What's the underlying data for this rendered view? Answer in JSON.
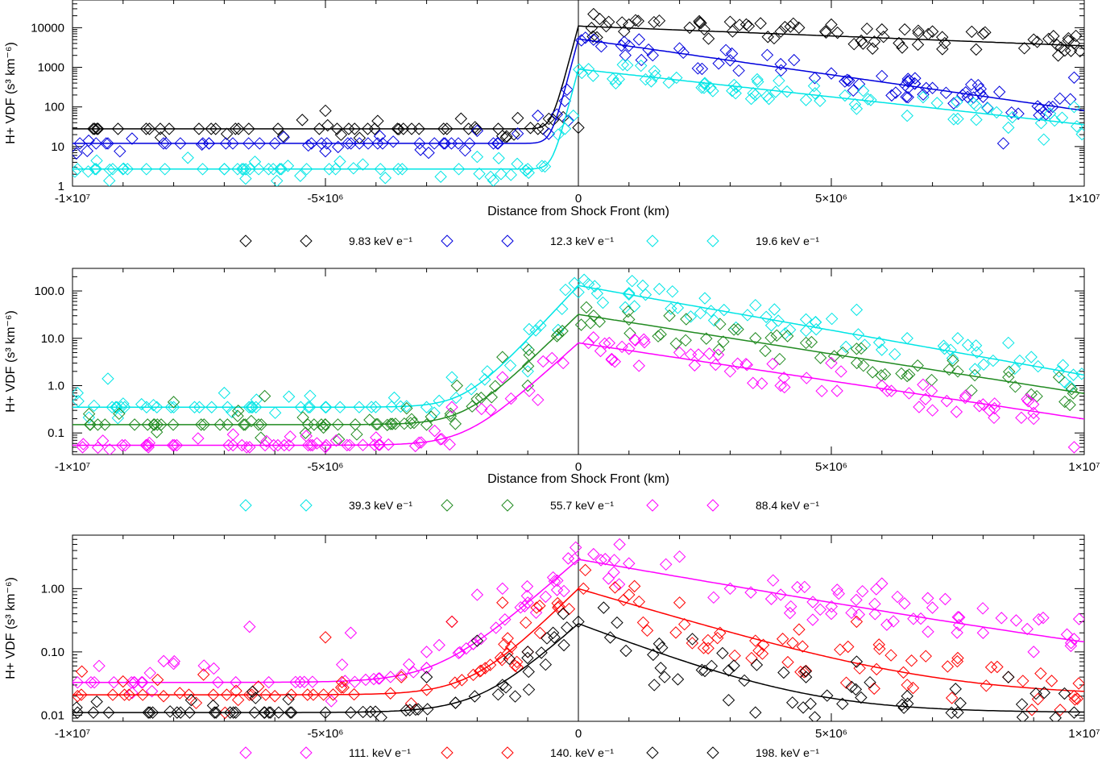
{
  "chart_data": [
    {
      "type": "scatter",
      "scale": "log",
      "xlabel": "Distance from Shock Front (km)",
      "ylabel": "H+ VDF (s³ km⁻⁶)",
      "xlim": [
        -10000000,
        10000000
      ],
      "ylim": [
        1,
        50000
      ],
      "x_ticks": [
        {
          "value": -10000000,
          "label": "-1×10⁷"
        },
        {
          "value": -5000000,
          "label": "-5×10⁶"
        },
        {
          "value": 0,
          "label": "0"
        },
        {
          "value": 5000000,
          "label": "5×10⁶"
        },
        {
          "value": 10000000,
          "label": "1×10⁷"
        }
      ],
      "y_ticks": [
        {
          "value": 1,
          "label": "1"
        },
        {
          "value": 10,
          "label": "10"
        },
        {
          "value": 100,
          "label": "100"
        },
        {
          "value": 1000,
          "label": "1000"
        },
        {
          "value": 10000,
          "label": "10000"
        }
      ],
      "series": [
        {
          "name": "9.83 keV e⁻¹",
          "color": "#000000",
          "upstream": 28,
          "peak": 11000,
          "decay_scale": 8700000,
          "floor": 0,
          "rise": 90000,
          "scatter": 0.28,
          "points": [
            [
              -9100000.0,
              28
            ],
            [
              -7500000.0,
              28
            ],
            [
              -5000000.0,
              80
            ],
            [
              -800000.0,
              28
            ],
            [
              -700000.0,
              28
            ],
            [
              -300000.0,
              55
            ],
            [
              0.0,
              30
            ],
            [
              300000.0,
              22000
            ],
            [
              600000.0,
              14000
            ],
            [
              1000000.0,
              12000
            ],
            [
              1600000.0,
              15000
            ],
            [
              2200000.0,
              10000
            ],
            [
              3000000.0,
              14000
            ],
            [
              4000000.0,
              8000
            ],
            [
              5000000.0,
              12000
            ],
            [
              6000000.0,
              9000
            ],
            [
              7000000.0,
              8000
            ],
            [
              8000000.0,
              7000
            ],
            [
              9000000.0,
              5000
            ],
            [
              9800000.0,
              4000
            ]
          ]
        },
        {
          "name": "12.3 keV e⁻¹",
          "color": "#0000dd",
          "upstream": 12,
          "peak": 5200,
          "decay_scale": 2400000,
          "floor": 0,
          "rise": 90000,
          "scatter": 0.32,
          "points": [
            [
              -9300000.0,
              12
            ],
            [
              -8200000.0,
              12
            ],
            [
              -7300000.0,
              12
            ],
            [
              -6000000.0,
              12
            ],
            [
              -2000000.0,
              25
            ],
            [
              -1600000.0,
              12
            ],
            [
              -800000.0,
              60
            ],
            [
              -200000.0,
              45
            ],
            [
              300000.0,
              5000
            ],
            [
              1000000.0,
              3500
            ],
            [
              2000000.0,
              3000
            ],
            [
              3000000.0,
              1500
            ],
            [
              4000000.0,
              1200
            ],
            [
              5000000.0,
              700
            ],
            [
              6000000.0,
              600
            ],
            [
              7000000.0,
              300
            ],
            [
              8000000.0,
              180
            ],
            [
              8400000.0,
              12
            ],
            [
              9300000.0,
              100
            ],
            [
              9800000.0,
              550
            ]
          ]
        },
        {
          "name": "19.6 keV e⁻¹",
          "color": "#00e5e5",
          "upstream": 2.7,
          "peak": 900,
          "decay_scale": 3100000,
          "floor": 0,
          "rise": 90000,
          "scatter": 0.3,
          "points": [
            [
              -9900000.0,
              2.7
            ],
            [
              -9000000.0,
              2.7
            ],
            [
              -7000000.0,
              2.7
            ],
            [
              -5900000.0,
              2.7
            ],
            [
              -2000000.0,
              5.5
            ],
            [
              -1000000.0,
              2.7
            ],
            [
              -400000.0,
              20
            ],
            [
              -100000.0,
              60
            ],
            [
              200000.0,
              900
            ],
            [
              800000.0,
              500
            ],
            [
              1500000.0,
              800
            ],
            [
              2500000.0,
              400
            ],
            [
              3500000.0,
              200
            ],
            [
              4500000.0,
              150
            ],
            [
              5500000.0,
              90
            ],
            [
              6500000.0,
              60
            ],
            [
              7500000.0,
              50
            ],
            [
              8500000.0,
              30
            ],
            [
              9200000.0,
              15
            ],
            [
              9800000.0,
              100
            ]
          ]
        }
      ]
    },
    {
      "type": "scatter",
      "scale": "log",
      "xlabel": "Distance from Shock Front (km)",
      "ylabel": "H+ VDF (s³ km⁻⁶)",
      "xlim": [
        -10000000,
        10000000
      ],
      "ylim": [
        0.035,
        300
      ],
      "x_ticks": [
        {
          "value": -10000000,
          "label": "-1×10⁷"
        },
        {
          "value": -5000000,
          "label": "-5×10⁶"
        },
        {
          "value": 0,
          "label": "0"
        },
        {
          "value": 5000000,
          "label": "5×10⁶"
        },
        {
          "value": 10000000,
          "label": "1×10⁷"
        }
      ],
      "y_ticks": [
        {
          "value": 0.1,
          "label": "0.1"
        },
        {
          "value": 1,
          "label": "1.0"
        },
        {
          "value": 10,
          "label": "10.0"
        },
        {
          "value": 100,
          "label": "100.0"
        }
      ],
      "series": [
        {
          "name": "39.3 keV e⁻¹",
          "color": "#00e5e5",
          "upstream": 0.35,
          "peak": 130,
          "decay_scale": 2300000,
          "floor": 0,
          "rise": 380000,
          "scatter": 0.3,
          "points": [
            [
              -9900000.0,
              0.7
            ],
            [
              -9300000.0,
              1.4
            ],
            [
              -8000000.0,
              0.35
            ],
            [
              -7000000.0,
              0.7
            ],
            [
              -5000000.0,
              0.35
            ],
            [
              -3000000.0,
              0.35
            ],
            [
              -2500000.0,
              1.5
            ],
            [
              -1800000.0,
              2.0
            ],
            [
              -1000000.0,
              2.0
            ],
            [
              -400000.0,
              15
            ],
            [
              200000.0,
              140
            ],
            [
              1000000.0,
              90
            ],
            [
              1600000.0,
              110
            ],
            [
              2500000.0,
              70
            ],
            [
              3500000.0,
              50
            ],
            [
              4500000.0,
              25
            ],
            [
              5500000.0,
              40
            ],
            [
              6500000.0,
              10
            ],
            [
              7500000.0,
              10
            ],
            [
              8500000.0,
              8
            ],
            [
              9500000.0,
              2
            ]
          ]
        },
        {
          "name": "55.7 keV e⁻¹",
          "color": "#228b22",
          "upstream": 0.15,
          "peak": 32,
          "decay_scale": 2600000,
          "floor": 0,
          "rise": 420000,
          "scatter": 0.32,
          "points": [
            [
              -9500000.0,
              0.15
            ],
            [
              -8000000.0,
              0.45
            ],
            [
              -6200000.0,
              0.6
            ],
            [
              -5000000.0,
              0.15
            ],
            [
              -3000000.0,
              0.15
            ],
            [
              -2400000.0,
              1.0
            ],
            [
              -1500000.0,
              4.0
            ],
            [
              -1000000.0,
              1.0
            ],
            [
              -400000.0,
              12
            ],
            [
              300000.0,
              30
            ],
            [
              1000000.0,
              25
            ],
            [
              1800000.0,
              30
            ],
            [
              2800000.0,
              20
            ],
            [
              3500000.0,
              10
            ],
            [
              4500000.0,
              8
            ],
            [
              5500000.0,
              6
            ],
            [
              6500000.0,
              1.6
            ],
            [
              7500000.0,
              2
            ],
            [
              8500000.0,
              1.5
            ],
            [
              9500000.0,
              1.5
            ]
          ]
        },
        {
          "name": "88.4 keV e⁻¹",
          "color": "#ff00ff",
          "upstream": 0.055,
          "peak": 8,
          "decay_scale": 2700000,
          "floor": 0,
          "rise": 450000,
          "scatter": 0.3,
          "points": [
            [
              -9800000.0,
              0.05
            ],
            [
              -8500000.0,
              0.05
            ],
            [
              -6500000.0,
              0.05
            ],
            [
              -5000000.0,
              0.05
            ],
            [
              -4000000.0,
              0.08
            ],
            [
              -2500000.0,
              0.35
            ],
            [
              -1500000.0,
              1.5
            ],
            [
              -800000.0,
              0.5
            ],
            [
              -300000.0,
              3
            ],
            [
              200000.0,
              8
            ],
            [
              1000000.0,
              6
            ],
            [
              2000000.0,
              5
            ],
            [
              3000000.0,
              2
            ],
            [
              4000000.0,
              1
            ],
            [
              5000000.0,
              3
            ],
            [
              6000000.0,
              1
            ],
            [
              7000000.0,
              0.3
            ],
            [
              8000000.0,
              0.4
            ],
            [
              9000000.0,
              0.2
            ],
            [
              9800000.0,
              0.05
            ]
          ]
        }
      ]
    },
    {
      "type": "scatter",
      "scale": "log",
      "xlabel": "",
      "ylabel": "H+ VDF (s³ km⁻⁶)",
      "xlim": [
        -10000000,
        10000000
      ],
      "ylim": [
        0.008,
        7
      ],
      "x_ticks": [
        {
          "value": -10000000,
          "label": "-1×10⁷"
        },
        {
          "value": -5000000,
          "label": "-5×10⁶"
        },
        {
          "value": 0,
          "label": "0"
        },
        {
          "value": 5000000,
          "label": "5×10⁶"
        },
        {
          "value": 10000000,
          "label": "1×10⁷"
        }
      ],
      "y_ticks": [
        {
          "value": 0.01,
          "label": "0.01"
        },
        {
          "value": 0.1,
          "label": "0.10"
        },
        {
          "value": 1,
          "label": "1.00"
        }
      ],
      "series": [
        {
          "name": "111. keV e⁻¹",
          "color": "#ff00ff",
          "upstream": 0.033,
          "peak": 2.9,
          "decay_scale": 3100000,
          "floor": 0.03,
          "rise": 620000,
          "scatter": 0.35,
          "points": [
            [
              -9900000.0,
              0.033
            ],
            [
              -8000000.0,
              0.065
            ],
            [
              -6500000.0,
              0.25
            ],
            [
              -4500000.0,
              0.2
            ],
            [
              -3000000.0,
              0.1
            ],
            [
              -2500000.0,
              0.3
            ],
            [
              -2000000.0,
              0.8
            ],
            [
              -1500000.0,
              1.0
            ],
            [
              -1000000.0,
              0.6
            ],
            [
              -500000.0,
              1.5
            ],
            [
              -200000.0,
              3.0
            ],
            [
              300000.0,
              3.5
            ],
            [
              1000000.0,
              2.5
            ],
            [
              2000000.0,
              3.2
            ],
            [
              3000000.0,
              1.0
            ],
            [
              4000000.0,
              0.8
            ],
            [
              5000000.0,
              0.4
            ],
            [
              6000000.0,
              1.2
            ],
            [
              7000000.0,
              0.5
            ],
            [
              8000000.0,
              0.2
            ],
            [
              9000000.0,
              0.1
            ],
            [
              9800000.0,
              0.16
            ]
          ]
        },
        {
          "name": "140. keV e⁻¹",
          "color": "#ff0000",
          "upstream": 0.021,
          "peak": 1.0,
          "decay_scale": 1800000,
          "floor": 0.02,
          "rise": 550000,
          "scatter": 0.38,
          "points": [
            [
              -9900000.0,
              0.02
            ],
            [
              -8200000.0,
              0.02
            ],
            [
              -6000000.0,
              0.02
            ],
            [
              -5000000.0,
              0.17
            ],
            [
              -3500000.0,
              0.04
            ],
            [
              -2500000.0,
              0.3
            ],
            [
              -1500000.0,
              0.6
            ],
            [
              -1000000.0,
              0.1
            ],
            [
              -400000.0,
              0.5
            ],
            [
              100000.0,
              1.0
            ],
            [
              1000000.0,
              0.8
            ],
            [
              2000000.0,
              0.6
            ],
            [
              2800000.0,
              0.2
            ],
            [
              3500000.0,
              0.15
            ],
            [
              4500000.0,
              0.05
            ],
            [
              5500000.0,
              0.3
            ],
            [
              6500000.0,
              0.03
            ],
            [
              7500000.0,
              0.08
            ],
            [
              8500000.0,
              0.04
            ],
            [
              9800000.0,
              0.02
            ]
          ]
        },
        {
          "name": "198. keV e⁻¹",
          "color": "#000000",
          "upstream": 0.011,
          "peak": 0.28,
          "decay_scale": 1400000,
          "floor": 0.011,
          "rise": 600000,
          "scatter": 0.4,
          "points": [
            [
              -9900000.0,
              0.011
            ],
            [
              -8500000.0,
              0.011
            ],
            [
              -6200000.0,
              0.011
            ],
            [
              -5000000.0,
              0.011
            ],
            [
              -4500000.0,
              0.011
            ],
            [
              -3000000.0,
              0.04
            ],
            [
              -2000000.0,
              0.15
            ],
            [
              -1500000.0,
              0.03
            ],
            [
              -1000000.0,
              0.1
            ],
            [
              -500000.0,
              0.2
            ],
            [
              0.0,
              0.3
            ],
            [
              500000.0,
              0.5
            ],
            [
              1500000.0,
              0.03
            ],
            [
              2500000.0,
              0.05
            ],
            [
              3500000.0,
              0.011
            ],
            [
              4500000.0,
              0.04
            ],
            [
              5500000.0,
              0.07
            ],
            [
              6500000.0,
              0.02
            ],
            [
              7500000.0,
              0.011
            ],
            [
              8500000.0,
              0.04
            ],
            [
              9800000.0,
              0.011
            ]
          ]
        }
      ]
    }
  ]
}
